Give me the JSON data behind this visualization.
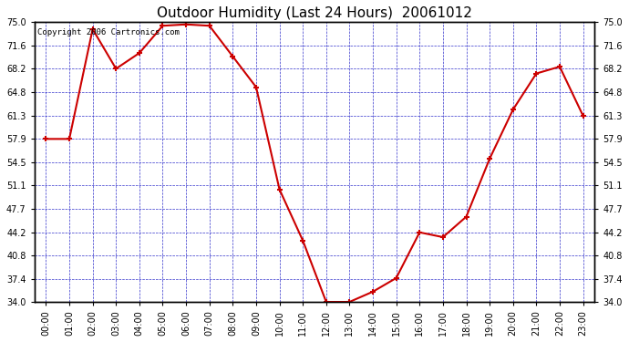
{
  "title": "Outdoor Humidity (Last 24 Hours)  20061012",
  "copyright_text": "Copyright 2006 Cartronics.com",
  "x_labels": [
    "00:00",
    "01:00",
    "02:00",
    "03:00",
    "04:00",
    "05:00",
    "06:00",
    "07:00",
    "08:00",
    "09:00",
    "10:00",
    "11:00",
    "12:00",
    "13:00",
    "14:00",
    "15:00",
    "16:00",
    "17:00",
    "18:00",
    "19:00",
    "20:00",
    "21:00",
    "22:00",
    "23:00"
  ],
  "y_values": [
    57.9,
    57.9,
    74.0,
    68.2,
    70.5,
    74.5,
    74.7,
    74.5,
    70.0,
    65.5,
    50.5,
    43.0,
    34.0,
    34.0,
    35.5,
    37.5,
    44.2,
    43.5,
    46.5,
    55.0,
    62.2,
    67.5,
    68.5,
    61.3
  ],
  "line_color": "#cc0000",
  "marker": "+",
  "marker_size": 5,
  "marker_lw": 1.5,
  "line_width": 1.5,
  "background_color": "#ffffff",
  "plot_bg_color": "#ffffff",
  "grid_color": "#3333cc",
  "axes_color": "#000000",
  "title_color": "#000000",
  "ylim_min": 34.0,
  "ylim_max": 75.0,
  "yticks": [
    34.0,
    37.4,
    40.8,
    44.2,
    47.7,
    51.1,
    54.5,
    57.9,
    61.3,
    64.8,
    68.2,
    71.6,
    75.0
  ],
  "title_fontsize": 11,
  "tick_fontsize": 7,
  "copyright_fontsize": 6.5,
  "fig_width": 6.9,
  "fig_height": 3.75,
  "fig_dpi": 100
}
